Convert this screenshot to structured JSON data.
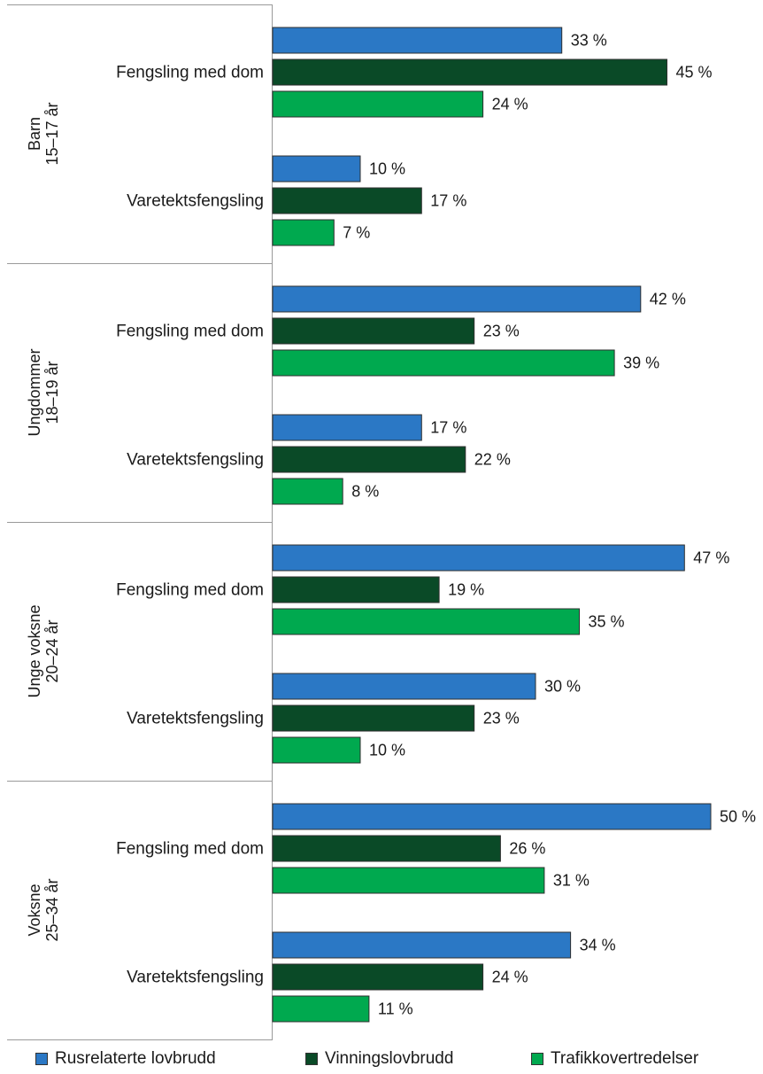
{
  "chart_data": {
    "type": "bar",
    "orientation": "horizontal",
    "value_suffix": " %",
    "grid": false,
    "legend_position": "bottom",
    "series": [
      {
        "name": "Rusrelaterte lovbrudd",
        "color": "#2b78c5"
      },
      {
        "name": "Vinningslovbrudd",
        "color": "#0a4a27"
      },
      {
        "name": "Trafikkovertredelser",
        "color": "#00a94f"
      }
    ],
    "groups": [
      {
        "label_lines": [
          "Barn",
          "15–17 år"
        ],
        "categories": [
          {
            "label": "Fengsling med dom",
            "values": [
              33,
              45,
              24
            ]
          },
          {
            "label": "Varetektsfengsling",
            "values": [
              10,
              17,
              7
            ]
          }
        ]
      },
      {
        "label_lines": [
          "Ungdommer",
          "18–19 år"
        ],
        "categories": [
          {
            "label": "Fengsling med dom",
            "values": [
              42,
              23,
              39
            ]
          },
          {
            "label": "Varetektsfengsling",
            "values": [
              17,
              22,
              8
            ]
          }
        ]
      },
      {
        "label_lines": [
          "Unge voksne",
          "20–24 år"
        ],
        "categories": [
          {
            "label": "Fengsling med dom",
            "values": [
              47,
              19,
              35
            ]
          },
          {
            "label": "Varetektsfengsling",
            "values": [
              30,
              23,
              10
            ]
          }
        ]
      },
      {
        "label_lines": [
          "Voksne",
          "25–34 år"
        ],
        "categories": [
          {
            "label": "Fengsling med dom",
            "values": [
              50,
              26,
              31
            ]
          },
          {
            "label": "Varetektsfengsling",
            "values": [
              34,
              24,
              11
            ]
          }
        ]
      }
    ]
  }
}
